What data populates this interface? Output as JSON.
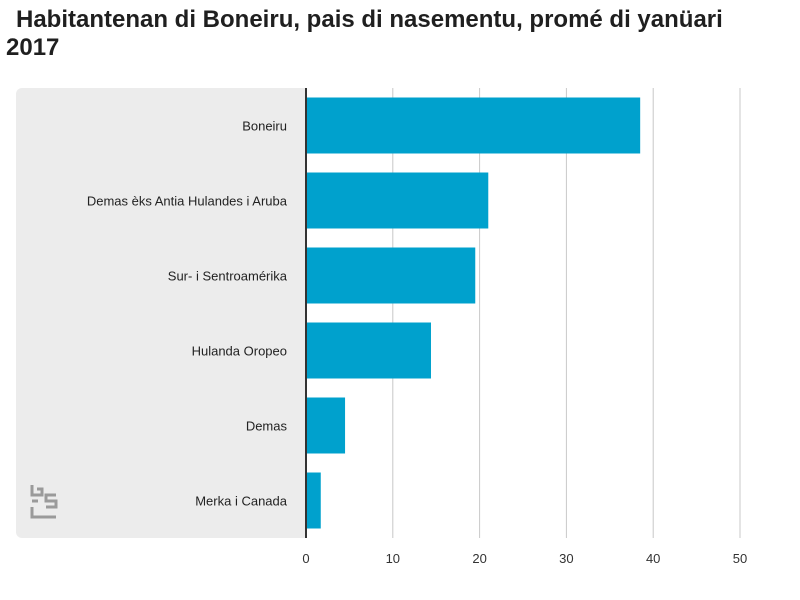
{
  "chart_data": {
    "type": "bar",
    "orientation": "horizontal",
    "title": "Habitantenan di Boneiru, pais di nasementu, promé di yanüari 2017",
    "categories": [
      "Boneiru",
      "Demas èks Antia Hulandes i Aruba",
      "Sur- i Sentroamérika",
      "Hulanda Oropeo",
      "Demas",
      "Merka i Canada"
    ],
    "values": [
      38.5,
      21,
      19.5,
      14.4,
      4.5,
      1.7
    ],
    "xlim": [
      0,
      50
    ],
    "xticks": [
      0,
      10,
      20,
      30,
      40,
      50
    ],
    "xlabel": "",
    "ylabel": "",
    "grid": true,
    "colors": {
      "bar": "#00a1cd",
      "grid": "#c8c8c8",
      "panel": "#ececec",
      "axis": "#333333"
    }
  },
  "logo": {
    "icon": "cbs-logo-icon"
  }
}
